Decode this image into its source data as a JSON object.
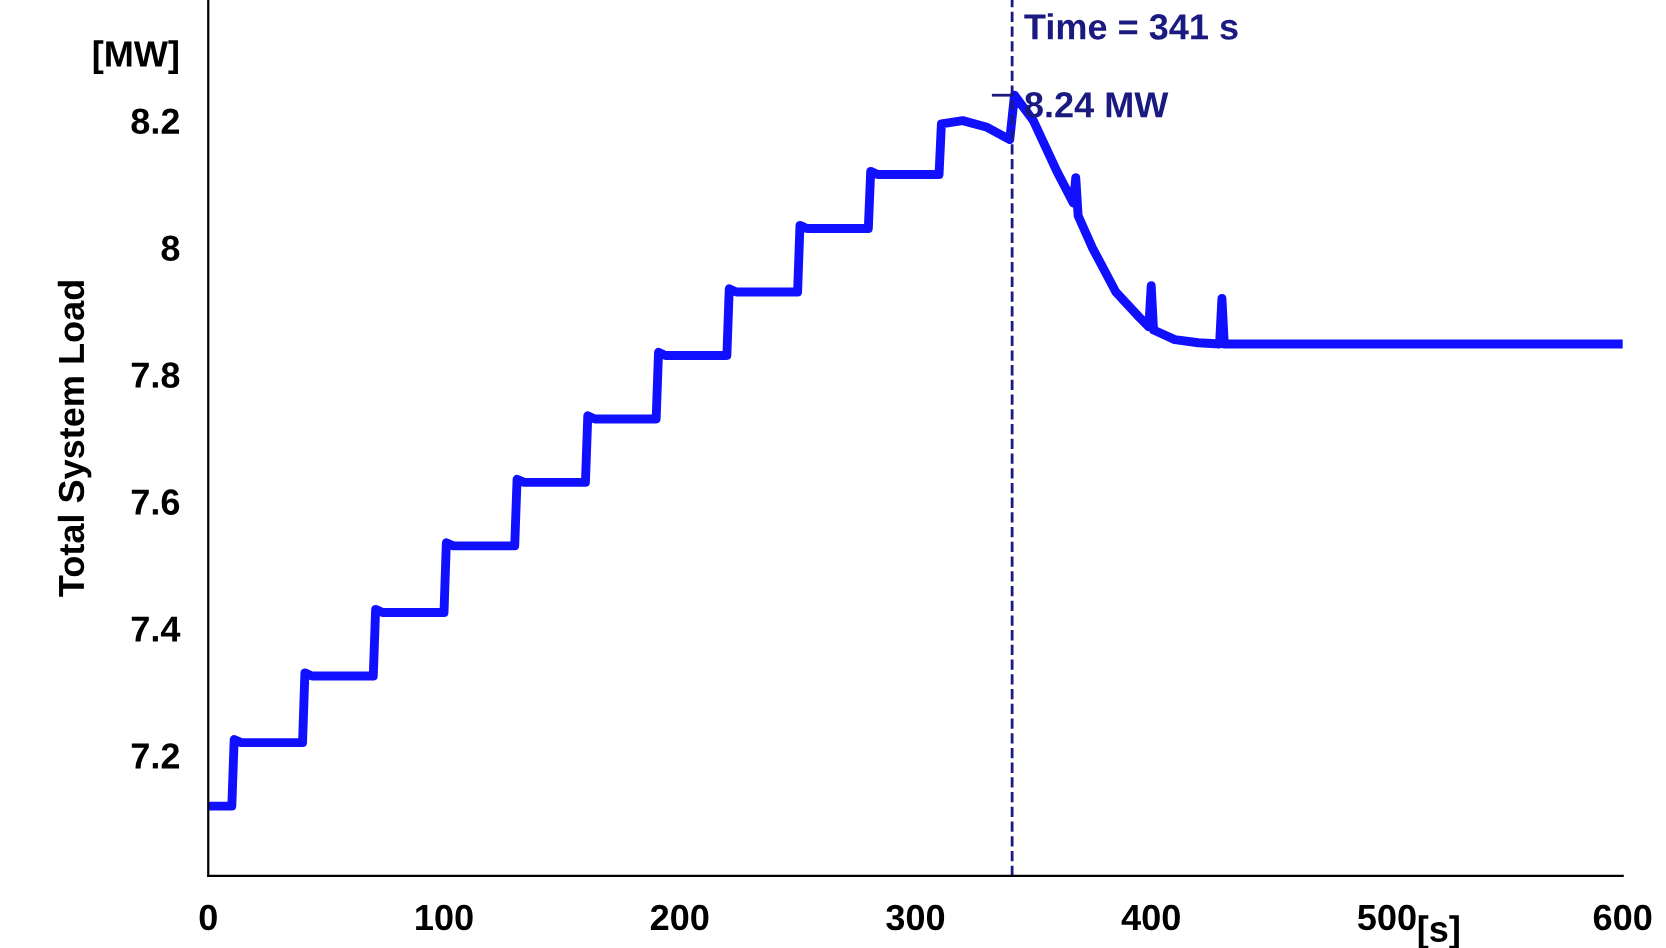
{
  "chart_data": {
    "type": "line",
    "ylabel": "Total System Load",
    "annotations": [
      "[MW]",
      "[s]",
      {
        "text": "8.24 MW",
        "x": 341,
        "y": 8.24
      }
    ],
    "xlim": [
      0,
      600
    ],
    "xticks": [
      0,
      100,
      200,
      300,
      400,
      500,
      600
    ],
    "ylim": [
      7.01,
      8.39
    ],
    "yticks": [
      7.2,
      7.4,
      7.6,
      7.8,
      8,
      8.2
    ],
    "grid": false,
    "legend": false,
    "marker": "none",
    "line_style": "solid",
    "ref_lines": [
      {
        "axis": "x",
        "value": 341,
        "label": "Time = 341 s",
        "color": "#1a1a80",
        "line_style": "dashed"
      }
    ],
    "series": [
      {
        "color": "#1010ff",
        "x": [
          0,
          10,
          11,
          14,
          40,
          41,
          44,
          70,
          71,
          74,
          100,
          101,
          104,
          130,
          131,
          134,
          160,
          161,
          164,
          190,
          191,
          194,
          220,
          221,
          224,
          250,
          251,
          254,
          280,
          281,
          284,
          310,
          311,
          320,
          330,
          340,
          342,
          350,
          360,
          367,
          368,
          369,
          375,
          385,
          395,
          399,
          400,
          401,
          410,
          420,
          429,
          430,
          431,
          600
        ],
        "values": [
          7.12,
          7.12,
          7.225,
          7.22,
          7.22,
          7.33,
          7.325,
          7.325,
          7.43,
          7.425,
          7.425,
          7.535,
          7.53,
          7.53,
          7.635,
          7.63,
          7.63,
          7.735,
          7.73,
          7.73,
          7.835,
          7.83,
          7.83,
          7.935,
          7.93,
          7.93,
          8.035,
          8.03,
          8.03,
          8.12,
          8.115,
          8.115,
          8.195,
          8.2,
          8.19,
          8.17,
          8.24,
          8.2,
          8.12,
          8.07,
          8.11,
          8.05,
          8.0,
          7.93,
          7.89,
          7.875,
          7.94,
          7.87,
          7.855,
          7.85,
          7.848,
          7.92,
          7.848,
          7.848
        ]
      }
    ]
  }
}
